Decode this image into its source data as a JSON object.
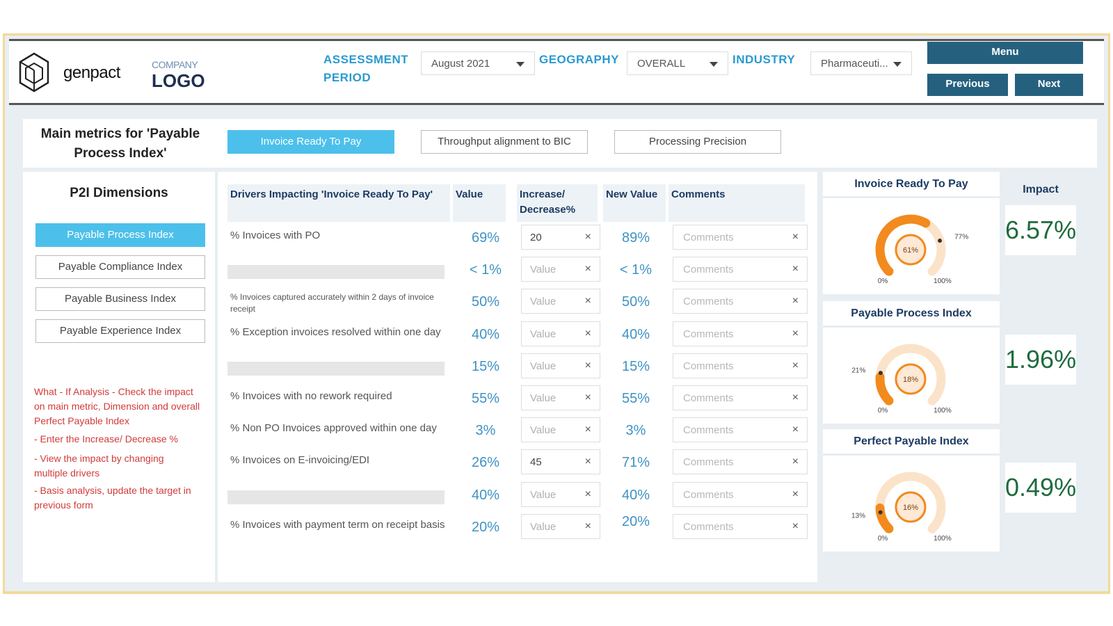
{
  "header": {
    "brand": "genpact",
    "company_line1": "COMPANY",
    "company_line2": "LOGO",
    "assessment_label_1": "ASSESSMENT",
    "assessment_label_2": "PERIOD",
    "assessment_value": "August 2021",
    "geography_label": "GEOGRAPHY",
    "geography_value": "OVERALL",
    "industry_label": "INDUSTRY",
    "industry_value": "Pharmaceuti...",
    "menu_label": "Menu",
    "previous_label": "Previous",
    "next_label": "Next"
  },
  "titlebar": {
    "title": "Main metrics for 'Payable Process Index'",
    "tabs": [
      "Invoice Ready To Pay",
      "Throughput alignment to BIC",
      "Processing Precision"
    ]
  },
  "left": {
    "title": "P2I Dimensions",
    "dimensions": [
      "Payable Process Index",
      "Payable Compliance Index",
      "Payable Business Index",
      "Payable Experience Index"
    ],
    "note_intro": "What - If Analysis - Check the impact on main metric, Dimension and overall Perfect Payable Index",
    "bullets": [
      "- Enter the Increase/ Decrease %",
      "- View the impact by changing multiple drivers",
      "- Basis analysis, update the target in previous form"
    ]
  },
  "table": {
    "headers": {
      "driver": "Drivers Impacting 'Invoice Ready To Pay'",
      "value": "Value",
      "change": "Increase/ Decrease%",
      "new_value": "New Value",
      "comments": "Comments"
    },
    "input_placeholder": "Value",
    "comments_placeholder": "Comments",
    "clear_icon": "×",
    "rows": [
      {
        "label": "% Invoices with PO",
        "value": "69%",
        "input": "20",
        "new_value": "89%"
      },
      {
        "label": "",
        "value": "< 1%",
        "input": "",
        "new_value": "< 1%"
      },
      {
        "label": "% Invoices captured accurately within 2 days of invoice receipt",
        "value": "50%",
        "input": "",
        "new_value": "50%"
      },
      {
        "label": "% Exception invoices resolved within one day",
        "value": "40%",
        "input": "",
        "new_value": "40%"
      },
      {
        "label": "",
        "value": "15%",
        "input": "",
        "new_value": "15%"
      },
      {
        "label": "% Invoices with no rework required",
        "value": "55%",
        "input": "",
        "new_value": "55%"
      },
      {
        "label": "% Non PO Invoices approved within one day",
        "value": "3%",
        "input": "",
        "new_value": "3%"
      },
      {
        "label": "% Invoices on E-invoicing/EDI",
        "value": "26%",
        "input": "45",
        "new_value": "71%"
      },
      {
        "label": "",
        "value": "40%",
        "input": "",
        "new_value": "40%"
      },
      {
        "label": "% Invoices with payment term on receipt basis",
        "value": "20%",
        "input": "",
        "new_value": "20%"
      }
    ]
  },
  "gauges": [
    {
      "title": "Invoice Ready To Pay",
      "value": 61,
      "center": "61%",
      "target": 77,
      "target_label": "77%",
      "min_label": "0%",
      "max_label": "100%",
      "impact": "6.57%"
    },
    {
      "title": "Payable Process Index",
      "value": 18,
      "center": "18%",
      "target": 21,
      "target_label": "21%",
      "min_label": "0%",
      "max_label": "100%",
      "impact": "1.96%"
    },
    {
      "title": "Perfect Payable Index",
      "value": 16,
      "center": "16%",
      "target": 13,
      "target_label": "13%",
      "min_label": "0%",
      "max_label": "100%",
      "impact": "0.49%"
    }
  ],
  "impact_header": "Impact",
  "colors": {
    "accent": "#4cc0ea",
    "nav": "#25617f",
    "gauge": "#f28a1e",
    "gauge_track": "#fbe3c9",
    "impact": "#1f6b3d"
  }
}
